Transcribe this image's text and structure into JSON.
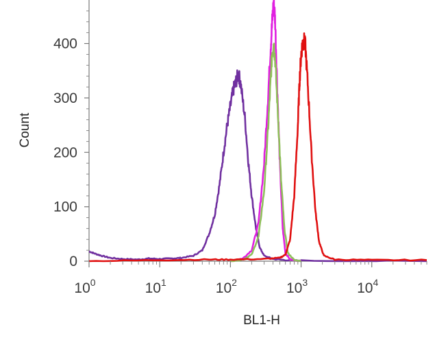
{
  "chart_data": {
    "type": "line",
    "title": "",
    "xlabel": "BL1-H",
    "ylabel": "Count",
    "x_scale": "log",
    "xlim": [
      1,
      60000
    ],
    "ylim": [
      0,
      480
    ],
    "x_ticks": [
      {
        "value": 1,
        "base": "10",
        "exp": "0"
      },
      {
        "value": 10,
        "base": "10",
        "exp": "1"
      },
      {
        "value": 100,
        "base": "10",
        "exp": "2"
      },
      {
        "value": 1000,
        "base": "10",
        "exp": "3"
      },
      {
        "value": 10000,
        "base": "10",
        "exp": "4"
      }
    ],
    "y_ticks": [
      0,
      100,
      200,
      300,
      400
    ],
    "grid": false,
    "legend": "none",
    "series": [
      {
        "color": "#7030a0",
        "points": [
          [
            1,
            18
          ],
          [
            1.2,
            14
          ],
          [
            1.5,
            10
          ],
          [
            2,
            6
          ],
          [
            3,
            4
          ],
          [
            5,
            3
          ],
          [
            7,
            5
          ],
          [
            10,
            4
          ],
          [
            15,
            5
          ],
          [
            20,
            6
          ],
          [
            30,
            10
          ],
          [
            40,
            20
          ],
          [
            50,
            50
          ],
          [
            60,
            85
          ],
          [
            70,
            140
          ],
          [
            80,
            200
          ],
          [
            90,
            250
          ],
          [
            100,
            285
          ],
          [
            110,
            315
          ],
          [
            120,
            330
          ],
          [
            130,
            345
          ],
          [
            140,
            325
          ],
          [
            160,
            265
          ],
          [
            180,
            180
          ],
          [
            200,
            120
          ],
          [
            230,
            60
          ],
          [
            260,
            25
          ],
          [
            300,
            10
          ],
          [
            400,
            4
          ],
          [
            600,
            2
          ],
          [
            1000,
            1
          ],
          [
            60000,
            0
          ]
        ]
      },
      {
        "color": "#e020e0",
        "points": [
          [
            100,
            0
          ],
          [
            150,
            5
          ],
          [
            200,
            20
          ],
          [
            250,
            70
          ],
          [
            300,
            180
          ],
          [
            340,
            300
          ],
          [
            370,
            390
          ],
          [
            390,
            440
          ],
          [
            410,
            480
          ],
          [
            430,
            440
          ],
          [
            460,
            320
          ],
          [
            500,
            180
          ],
          [
            550,
            60
          ],
          [
            600,
            15
          ],
          [
            700,
            3
          ],
          [
            1000,
            0
          ]
        ]
      },
      {
        "color": "#8fbf5a",
        "points": [
          [
            100,
            0
          ],
          [
            150,
            3
          ],
          [
            200,
            12
          ],
          [
            250,
            45
          ],
          [
            300,
            130
          ],
          [
            340,
            240
          ],
          [
            370,
            330
          ],
          [
            390,
            385
          ],
          [
            410,
            400
          ],
          [
            430,
            370
          ],
          [
            470,
            270
          ],
          [
            520,
            150
          ],
          [
            580,
            60
          ],
          [
            650,
            15
          ],
          [
            800,
            2
          ],
          [
            1000,
            0
          ]
        ]
      },
      {
        "color": "#e01010",
        "points": [
          [
            1,
            0
          ],
          [
            10,
            2
          ],
          [
            50,
            3
          ],
          [
            100,
            3
          ],
          [
            300,
            4
          ],
          [
            500,
            6
          ],
          [
            600,
            12
          ],
          [
            700,
            40
          ],
          [
            800,
            120
          ],
          [
            900,
            250
          ],
          [
            950,
            330
          ],
          [
            1000,
            380
          ],
          [
            1050,
            400
          ],
          [
            1100,
            405
          ],
          [
            1150,
            395
          ],
          [
            1250,
            320
          ],
          [
            1400,
            200
          ],
          [
            1600,
            90
          ],
          [
            1800,
            35
          ],
          [
            2100,
            10
          ],
          [
            3000,
            3
          ],
          [
            10000,
            2
          ],
          [
            60000,
            2
          ]
        ]
      }
    ]
  }
}
